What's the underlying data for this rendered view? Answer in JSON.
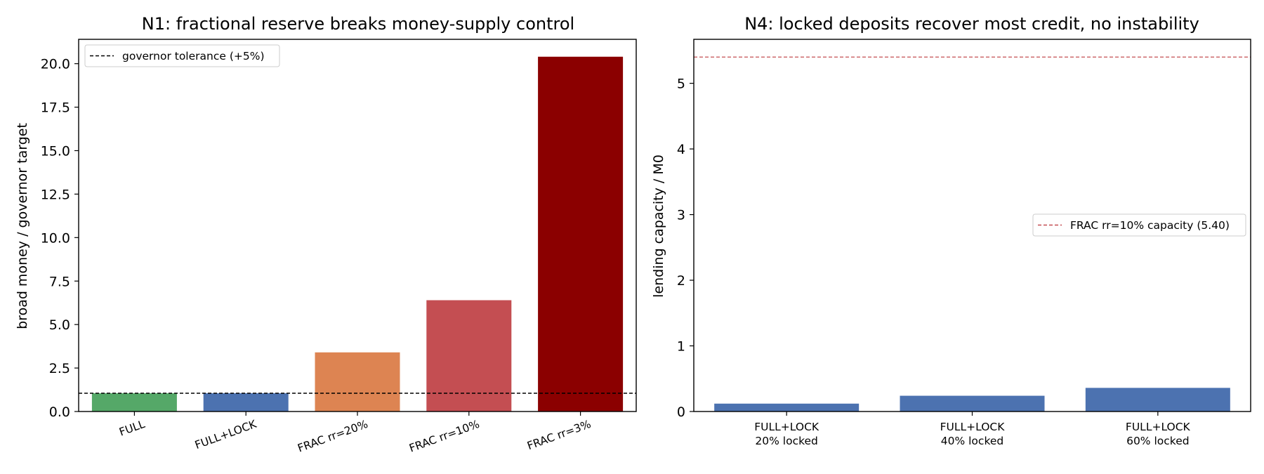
{
  "chart_data": [
    {
      "type": "bar",
      "title": "N1: fractional reserve breaks money-supply control",
      "xlabel": "",
      "ylabel": "broad money / governor target",
      "categories": [
        "FULL",
        "FULL+LOCK",
        "FRAC rr=20%",
        "FRAC rr=10%",
        "FRAC rr=3%"
      ],
      "values": [
        1.05,
        1.05,
        3.4,
        6.4,
        20.4
      ],
      "colors": [
        "#55a868",
        "#4c72b0",
        "#dd8452",
        "#c44e52",
        "#8b0000"
      ],
      "ylim": [
        0,
        21.4
      ],
      "yticks": [
        0.0,
        2.5,
        5.0,
        7.5,
        10.0,
        12.5,
        15.0,
        17.5,
        20.0
      ],
      "ytick_labels": [
        "0.0",
        "2.5",
        "5.0",
        "7.5",
        "10.0",
        "12.5",
        "15.0",
        "17.5",
        "20.0"
      ],
      "xtick_rotation": -20,
      "reference_line": {
        "value": 1.05,
        "label": "governor tolerance (+5%)",
        "color": "#000000",
        "style": "dashed"
      },
      "legend": {
        "placement": "top-left",
        "entries": [
          "governor tolerance (+5%)"
        ]
      },
      "grid": false
    },
    {
      "type": "bar",
      "title": "N4: locked deposits recover most credit, no instability",
      "xlabel": "",
      "ylabel": "lending capacity / M0",
      "categories": [
        [
          "FULL+LOCK",
          "20% locked"
        ],
        [
          "FULL+LOCK",
          "40% locked"
        ],
        [
          "FULL+LOCK",
          "60% locked"
        ]
      ],
      "values": [
        0.12,
        0.24,
        0.36
      ],
      "colors": [
        "#4c72b0",
        "#4c72b0",
        "#4c72b0"
      ],
      "ylim": [
        0,
        5.67
      ],
      "yticks": [
        0,
        1,
        2,
        3,
        4,
        5
      ],
      "ytick_labels": [
        "0",
        "1",
        "2",
        "3",
        "4",
        "5"
      ],
      "reference_line": {
        "value": 5.4,
        "label": "FRAC rr=10% capacity (5.40)",
        "color": "#c44e52",
        "style": "dashed"
      },
      "legend": {
        "placement": "center-right",
        "entries": [
          "FRAC rr=10% capacity (5.40)"
        ]
      },
      "grid": false
    }
  ]
}
